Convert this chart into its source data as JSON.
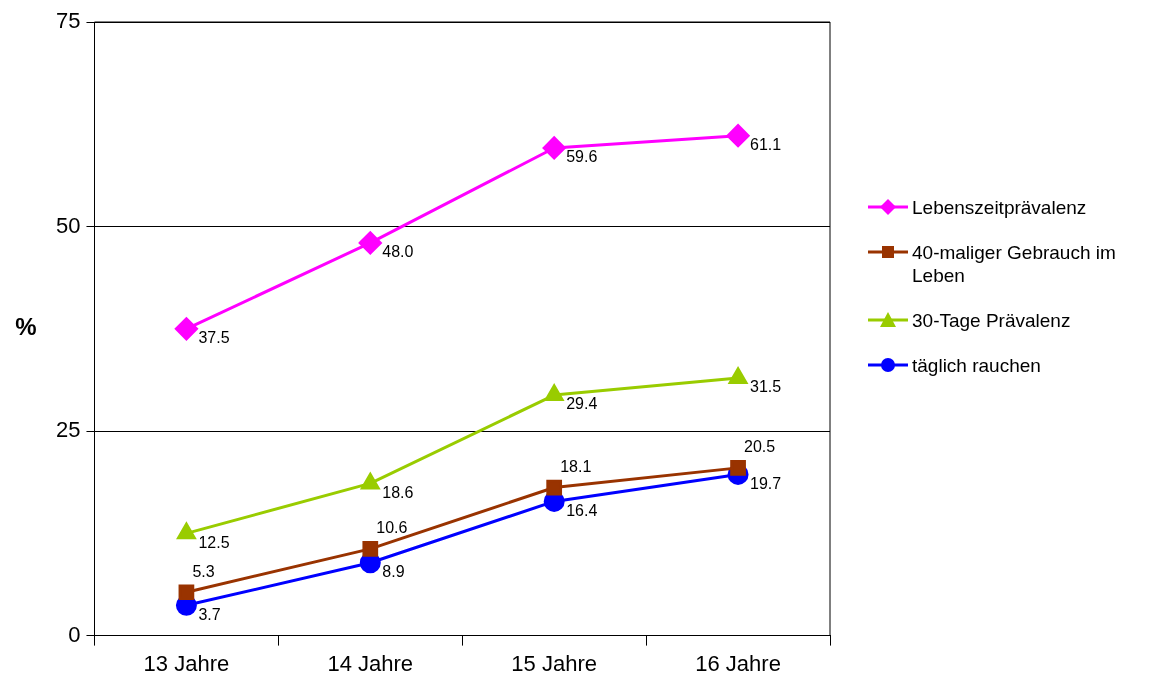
{
  "chart_data": {
    "type": "line",
    "ylabel": "%",
    "categories": [
      "13 Jahre",
      "14 Jahre",
      "15 Jahre",
      "16 Jahre"
    ],
    "series": [
      {
        "name": "Lebenszeitprävalenz",
        "color": "#ff00ff",
        "marker": "diamond",
        "values": [
          37.5,
          48.0,
          59.6,
          61.1
        ],
        "value_labels": [
          "37.5",
          "48.0",
          "59.6",
          "61.1"
        ]
      },
      {
        "name": "40-maliger Gebrauch im Leben",
        "color": "#993300",
        "marker": "square",
        "values": [
          5.3,
          10.6,
          18.1,
          20.5
        ],
        "value_labels": [
          "5.3",
          "10.6",
          "18.1",
          "20.5"
        ]
      },
      {
        "name": "30-Tage Prävalenz",
        "color": "#99cc00",
        "marker": "triangle",
        "values": [
          12.5,
          18.6,
          29.4,
          31.5
        ],
        "value_labels": [
          "12.5",
          "18.6",
          "29.4",
          "31.5"
        ]
      },
      {
        "name": "täglich rauchen",
        "color": "#0000ff",
        "marker": "circle",
        "values": [
          3.7,
          8.9,
          16.4,
          19.7
        ],
        "value_labels": [
          "3.7",
          "8.9",
          "16.4",
          "19.7"
        ]
      }
    ],
    "ylim": [
      0,
      75
    ],
    "yticks": [
      0,
      25,
      50,
      75
    ],
    "grid": "y",
    "legend": "right",
    "line_style": "solid"
  }
}
